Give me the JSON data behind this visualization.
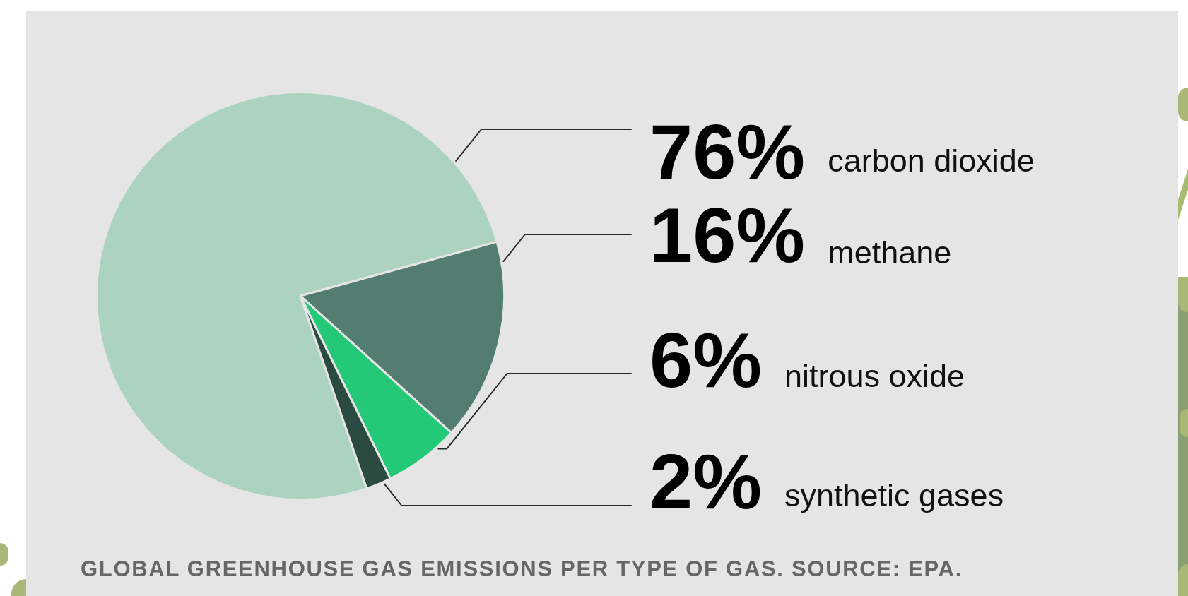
{
  "chart_data": {
    "type": "pie",
    "title": "GLOBAL GREENHOUSE GAS EMISSIONS PER TYPE OF GAS. SOURCE: EPA.",
    "categories": [
      "carbon dioxide",
      "methane",
      "nitrous oxide",
      "synthetic gases"
    ],
    "values": [
      76,
      16,
      6,
      2
    ],
    "colors": [
      "#acd3c0",
      "#547d72",
      "#23c977",
      "#2b4a40"
    ],
    "value_labels": [
      "76%",
      "16%",
      "6%",
      "2%"
    ]
  }
}
